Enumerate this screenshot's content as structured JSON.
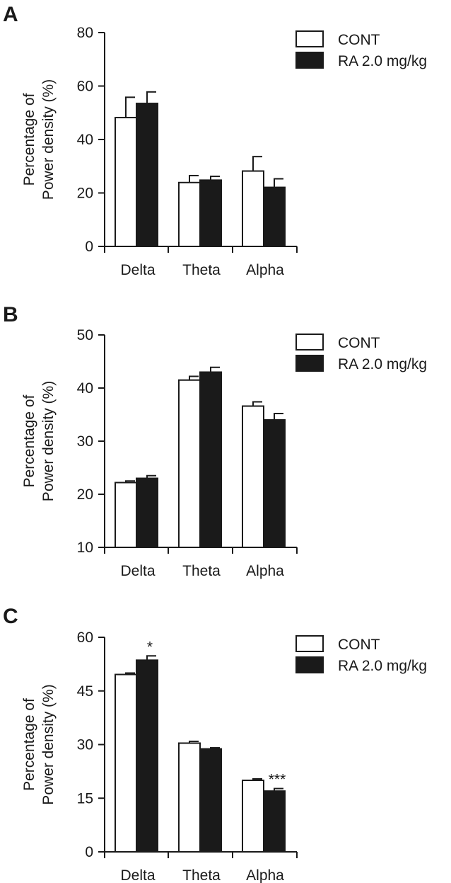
{
  "chart_data": [
    {
      "type": "bar",
      "panel": "A",
      "categories": [
        "Delta",
        "Theta",
        "Alpha"
      ],
      "series": [
        {
          "name": "CONT",
          "values": [
            48.2,
            23.9,
            28.2
          ],
          "errors": [
            7.6,
            2.6,
            5.4
          ],
          "color": "#ffffff"
        },
        {
          "name": "RA 2.0 mg/kg",
          "values": [
            53.5,
            24.8,
            22.1
          ],
          "errors": [
            4.3,
            1.4,
            3.2
          ],
          "color": "#1a1a1a"
        }
      ],
      "ylabel": [
        "Percentage of",
        "Power density (%)"
      ],
      "ylim": [
        0,
        80
      ],
      "yticks": [
        0,
        20,
        40,
        60,
        80
      ],
      "annotations": [],
      "grid": false,
      "legend": "top-right"
    },
    {
      "type": "bar",
      "panel": "B",
      "categories": [
        "Delta",
        "Theta",
        "Alpha"
      ],
      "series": [
        {
          "name": "CONT",
          "values": [
            22.2,
            41.5,
            36.6
          ],
          "errors": [
            0.3,
            0.7,
            0.8
          ],
          "color": "#ffffff"
        },
        {
          "name": "RA 2.0 mg/kg",
          "values": [
            23.0,
            43.0,
            34.0
          ],
          "errors": [
            0.5,
            0.9,
            1.2
          ],
          "color": "#1a1a1a"
        }
      ],
      "ylabel": [
        "Percentage of",
        "Power density (%)"
      ],
      "ylim": [
        10,
        50
      ],
      "yticks": [
        10,
        20,
        30,
        40,
        50
      ],
      "annotations": [],
      "grid": false,
      "legend": "top-right"
    },
    {
      "type": "bar",
      "panel": "C",
      "categories": [
        "Delta",
        "Theta",
        "Alpha"
      ],
      "series": [
        {
          "name": "CONT",
          "values": [
            49.6,
            30.4,
            20.0
          ],
          "errors": [
            0.4,
            0.5,
            0.4
          ],
          "color": "#ffffff"
        },
        {
          "name": "RA 2.0 mg/kg",
          "values": [
            53.6,
            28.8,
            17.0
          ],
          "errors": [
            1.2,
            0.3,
            0.7
          ],
          "color": "#1a1a1a"
        }
      ],
      "ylabel": [
        "Percentage of",
        "Power density (%)"
      ],
      "ylim": [
        0,
        60
      ],
      "yticks": [
        0,
        15,
        30,
        45,
        60
      ],
      "annotations": [
        {
          "text": "*",
          "category": "Delta",
          "series": "RA 2.0 mg/kg"
        },
        {
          "text": "***",
          "category": "Alpha",
          "series": "RA 2.0 mg/kg"
        }
      ],
      "grid": false,
      "legend": "top-right"
    }
  ]
}
